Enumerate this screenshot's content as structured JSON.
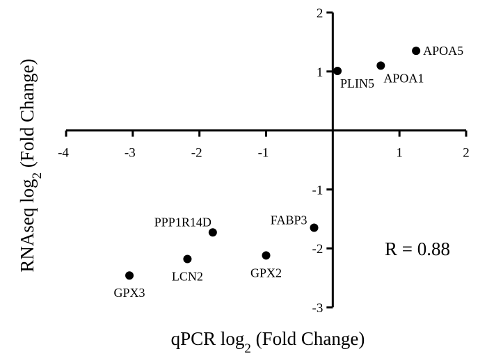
{
  "chart_data": {
    "type": "scatter",
    "title": "",
    "xlabel": {
      "prefix": "qPCR log",
      "sub": "2",
      "suffix": " (Fold Change)"
    },
    "ylabel": {
      "prefix": "RNAseq log",
      "sub": "2",
      "suffix": " (Fold Change)"
    },
    "xlim": [
      -4,
      2
    ],
    "ylim": [
      -3,
      2
    ],
    "xticks": [
      -4,
      -3,
      -2,
      -1,
      1,
      2
    ],
    "yticks": [
      -3,
      -2,
      -1,
      1,
      2
    ],
    "grid": false,
    "annotation": "R = 0.88",
    "points": [
      {
        "label": "APOA5",
        "x": 1.25,
        "y": 1.35,
        "label_pos": "right"
      },
      {
        "label": "APOA1",
        "x": 0.72,
        "y": 1.1,
        "label_pos": "below-right"
      },
      {
        "label": "PLIN5",
        "x": 0.07,
        "y": 1.01,
        "label_pos": "below-right"
      },
      {
        "label": "FABP3",
        "x": -0.28,
        "y": -1.65,
        "label_pos": "left"
      },
      {
        "label": "PPP1R14D",
        "x": -1.8,
        "y": -1.73,
        "label_pos": "above-left"
      },
      {
        "label": "GPX2",
        "x": -1.0,
        "y": -2.12,
        "label_pos": "below"
      },
      {
        "label": "LCN2",
        "x": -2.18,
        "y": -2.18,
        "label_pos": "below"
      },
      {
        "label": "GPX3",
        "x": -3.05,
        "y": -2.46,
        "label_pos": "below"
      }
    ]
  }
}
